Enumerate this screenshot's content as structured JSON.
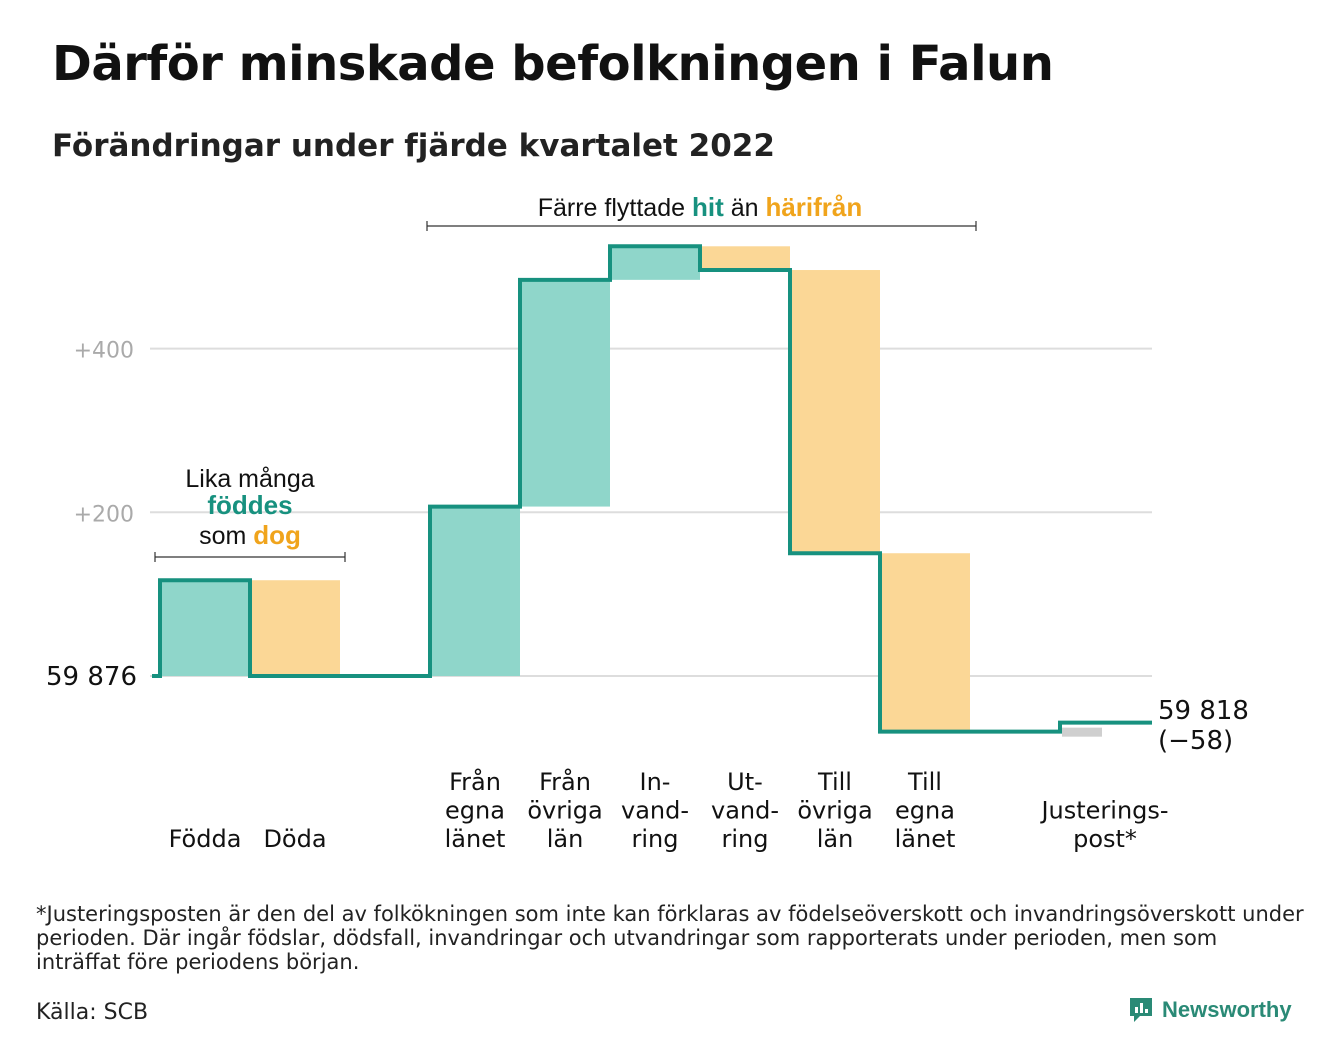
{
  "header": {
    "title": "Därför minskade befolkningen i Falun",
    "subtitle": "Förändringar under fjärde kvartalet 2022"
  },
  "annotations": {
    "left": {
      "line1": "Lika många",
      "word_inflow": "föddes",
      "pre": "som",
      "word_outflow": "dog"
    },
    "right": {
      "pre": "Färre flyttade",
      "word_inflow": "hit",
      "mid": "än",
      "word_outflow": "härifrån"
    }
  },
  "footnote": "*Justeringsposten är den del av folkökningen som inte kan förklaras av födelseöverskott och invandringsöverskott under perioden. Där ingår födslar, dödsfall, invandringar och utvandringar som rapporterats under perioden, men som inträffat före periodens början.",
  "source": "Källa: SCB",
  "brand": {
    "name": "Newsworthy"
  },
  "colors": {
    "inflow_fill": "#8fd6ca",
    "outflow_fill": "#fbd796",
    "adjust_fill": "#cfcfcf",
    "line": "#17917f",
    "inflow_text": "#17917f",
    "outflow_text": "#f0a41c",
    "grid": "#dddddd"
  },
  "chart_data": {
    "type": "waterfall",
    "start_label": "59 876",
    "start_value": 59876,
    "end_label": "59 818",
    "end_change_label": "(−58)",
    "end_value": 59818,
    "y_ticks": [
      {
        "label": "+400",
        "value": 400
      },
      {
        "label": "+200",
        "value": 200
      },
      {
        "label": "59 876",
        "value": 0
      }
    ],
    "ylim": [
      -90,
      530
    ],
    "grid": true,
    "steps": [
      {
        "label": [
          "Födda"
        ],
        "change": 117,
        "kind": "inflow"
      },
      {
        "label": [
          "Döda"
        ],
        "change": -117,
        "kind": "outflow"
      },
      {
        "label": [],
        "change": 0,
        "kind": "gap"
      },
      {
        "label": [
          "Från",
          "egna",
          "länet"
        ],
        "change": 207,
        "kind": "inflow"
      },
      {
        "label": [
          "Från",
          "övriga",
          "län"
        ],
        "change": 277,
        "kind": "inflow"
      },
      {
        "label": [
          "In-",
          "vand-",
          "ring"
        ],
        "change": 41,
        "kind": "inflow"
      },
      {
        "label": [
          "Ut-",
          "vand-",
          "ring"
        ],
        "change": -29,
        "kind": "outflow"
      },
      {
        "label": [
          "Till",
          "övriga",
          "län"
        ],
        "change": -346,
        "kind": "outflow"
      },
      {
        "label": [
          "Till",
          "egna",
          "länet"
        ],
        "change": -218,
        "kind": "outflow"
      },
      {
        "label": [],
        "change": 0,
        "kind": "gap"
      },
      {
        "label": [
          "Justerings-",
          "post*"
        ],
        "change": 11,
        "kind": "adjust"
      }
    ]
  }
}
